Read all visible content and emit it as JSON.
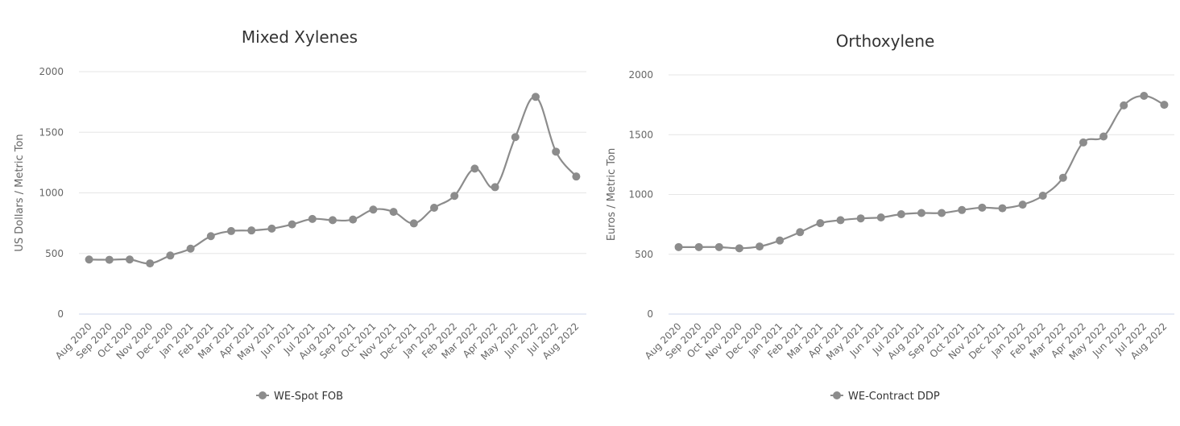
{
  "chart_data": [
    {
      "type": "line",
      "title": "Mixed Xylenes",
      "xlabel": "",
      "ylabel": "US Dollars / Metric Ton",
      "ylim": [
        0,
        2000
      ],
      "yticks": [
        0,
        500,
        1000,
        1500,
        2000
      ],
      "grid": true,
      "legend_position": "bottom",
      "categories": [
        "Aug 2020",
        "Sep 2020",
        "Oct 2020",
        "Nov 2020",
        "Dec 2020",
        "Jan 2021",
        "Feb 2021",
        "Mar 2021",
        "Apr 2021",
        "May 2021",
        "Jun 2021",
        "Jul 2021",
        "Aug 2021",
        "Sep 2021",
        "Oct 2021",
        "Nov 2021",
        "Dec 2021",
        "Jan 2022",
        "Feb 2022",
        "Mar 2022",
        "Apr 2022",
        "May 2022",
        "Jun 2022",
        "Jul 2022",
        "Aug 2022"
      ],
      "series": [
        {
          "name": "WE-Spot FOB",
          "color": "#8c8c8c",
          "values": [
            450,
            448,
            450,
            418,
            483,
            540,
            643,
            685,
            690,
            705,
            740,
            785,
            775,
            780,
            862,
            843,
            748,
            877,
            975,
            1200,
            1047,
            1460,
            1792,
            1340,
            1135
          ]
        }
      ]
    },
    {
      "type": "line",
      "title": "Orthoxylene",
      "xlabel": "",
      "ylabel": "Euros / Metric Ton",
      "ylim": [
        0,
        2000
      ],
      "yticks": [
        0,
        500,
        1000,
        1500,
        2000
      ],
      "grid": true,
      "legend_position": "bottom",
      "categories": [
        "Aug 2020",
        "Sep 2020",
        "Oct 2020",
        "Nov 2020",
        "Dec 2020",
        "Jan 2021",
        "Feb 2021",
        "Mar 2021",
        "Apr 2021",
        "May 2021",
        "Jun 2021",
        "Jul 2021",
        "Aug 2021",
        "Sep 2021",
        "Oct 2021",
        "Nov 2021",
        "Dec 2021",
        "Jan 2022",
        "Feb 2022",
        "Mar 2022",
        "Apr 2022",
        "May 2022",
        "Jun 2022",
        "Jul 2022",
        "Aug 2022"
      ],
      "series": [
        {
          "name": "WE-Contract DDP",
          "color": "#8c8c8c",
          "values": [
            560,
            560,
            560,
            550,
            565,
            615,
            685,
            760,
            785,
            800,
            808,
            835,
            845,
            845,
            870,
            890,
            885,
            915,
            990,
            1140,
            1435,
            1485,
            1745,
            1825,
            1750
          ]
        }
      ]
    }
  ]
}
